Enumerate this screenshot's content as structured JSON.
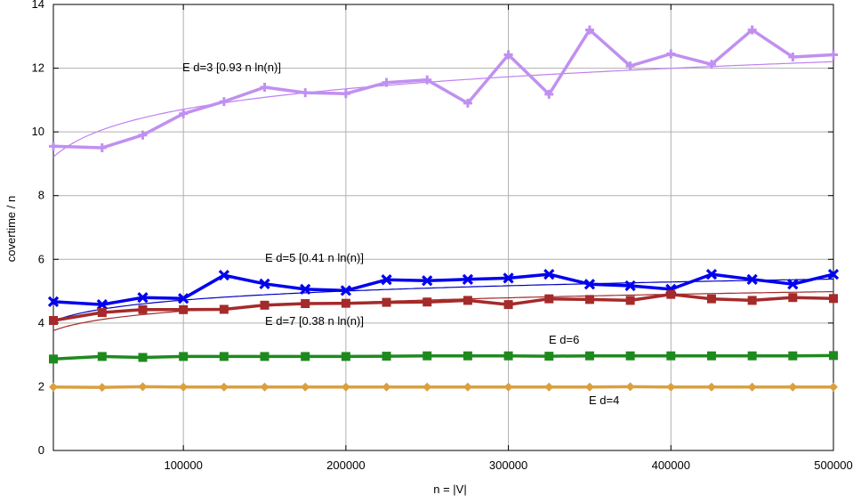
{
  "chart_data": {
    "type": "line",
    "xlabel": "n = |V|",
    "ylabel": "covertime / n",
    "xlim": [
      20000,
      500000
    ],
    "ylim": [
      0,
      14
    ],
    "xticks": [
      100000,
      200000,
      300000,
      400000,
      500000
    ],
    "xtick_labels": [
      "100000",
      "200000",
      "300000",
      "400000",
      "500000"
    ],
    "yticks": [
      0,
      2,
      4,
      6,
      8,
      10,
      12,
      14
    ],
    "ytick_labels": [
      "0",
      "2",
      "4",
      "6",
      "8",
      "10",
      "12",
      "14"
    ],
    "grid": true,
    "x": [
      20000,
      50000,
      75000,
      100000,
      125000,
      150000,
      175000,
      200000,
      225000,
      250000,
      275000,
      300000,
      325000,
      350000,
      375000,
      400000,
      425000,
      450000,
      475000,
      500000
    ],
    "series": [
      {
        "name": "E d=3 [0.93 n ln(n)]",
        "color": "#c090f0",
        "width": 3.5,
        "marker": "plus",
        "values": [
          9.55,
          9.5,
          9.9,
          10.57,
          10.95,
          11.4,
          11.23,
          11.2,
          11.55,
          11.63,
          10.9,
          12.42,
          11.18,
          13.2,
          12.07,
          12.45,
          12.12,
          13.2,
          12.35,
          12.42
        ],
        "fit": {
          "coef": 0.93,
          "color": "#c080f0"
        }
      },
      {
        "name": "E d=5 [0.41 n ln(n)]",
        "color": "#0000ee",
        "width": 3.5,
        "marker": "cross",
        "values": [
          4.67,
          4.58,
          4.8,
          4.77,
          5.5,
          5.23,
          5.06,
          5.02,
          5.36,
          5.33,
          5.37,
          5.41,
          5.53,
          5.22,
          5.17,
          5.06,
          5.53,
          5.37,
          5.22,
          5.53
        ],
        "fit": {
          "coef": 0.41,
          "color": "#0000c0"
        }
      },
      {
        "name": "E d=7 [0.38 n ln(n)]",
        "color": "#a52a2a",
        "width": 3.5,
        "marker": "square",
        "values": [
          4.08,
          4.33,
          4.42,
          4.42,
          4.43,
          4.56,
          4.61,
          4.62,
          4.65,
          4.66,
          4.71,
          4.58,
          4.76,
          4.74,
          4.71,
          4.9,
          4.76,
          4.71,
          4.8,
          4.77
        ],
        "fit": {
          "coef": 0.38,
          "color": "#a52a2a"
        }
      },
      {
        "name": "E d=6",
        "color": "#1e8a1e",
        "width": 3.5,
        "marker": "square",
        "values": [
          2.87,
          2.95,
          2.92,
          2.95,
          2.95,
          2.95,
          2.95,
          2.95,
          2.96,
          2.97,
          2.97,
          2.97,
          2.96,
          2.97,
          2.97,
          2.97,
          2.97,
          2.97,
          2.97,
          2.98
        ]
      },
      {
        "name": "E d=4",
        "color": "#daa040",
        "width": 3.5,
        "marker": "diamond",
        "values": [
          1.99,
          1.98,
          2.0,
          1.99,
          1.99,
          1.99,
          1.99,
          1.99,
          1.99,
          1.99,
          1.99,
          1.99,
          1.99,
          1.99,
          2.0,
          1.99,
          1.99,
          1.99,
          1.99,
          1.99
        ]
      }
    ]
  }
}
